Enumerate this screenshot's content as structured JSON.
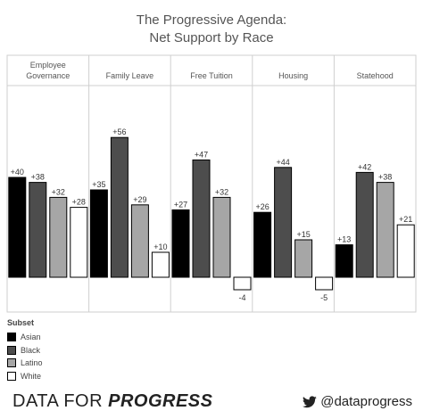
{
  "title_line1": "The Progressive Agenda:",
  "title_line2": "Net Support by Race",
  "legend": {
    "title": "Subset",
    "items": [
      {
        "label": "Asian",
        "color": "#000000"
      },
      {
        "label": "Black",
        "color": "#4d4d4d"
      },
      {
        "label": "Latino",
        "color": "#a6a6a6"
      },
      {
        "label": "White",
        "color": "#ffffff"
      }
    ]
  },
  "brand": {
    "prefix": "DATA FOR ",
    "emph": "PROGRESS"
  },
  "twitter": {
    "handle": "@dataprogress",
    "icon": "twitter-bird-icon"
  },
  "chart_data": {
    "type": "bar",
    "categories": [
      "Employee Governance",
      "Family Leave",
      "Free Tuition",
      "Housing",
      "Statehood"
    ],
    "category_labels": [
      [
        "Employee",
        "Governance"
      ],
      [
        "Family Leave"
      ],
      [
        "Free Tuition"
      ],
      [
        "Housing"
      ],
      [
        "Statehood"
      ]
    ],
    "series": [
      {
        "name": "Asian",
        "values": [
          40,
          35,
          27,
          26,
          13
        ]
      },
      {
        "name": "Black",
        "values": [
          38,
          56,
          47,
          44,
          42
        ]
      },
      {
        "name": "Latino",
        "values": [
          32,
          29,
          32,
          15,
          38
        ]
      },
      {
        "name": "White",
        "values": [
          28,
          10,
          -4,
          -5,
          21
        ]
      }
    ],
    "data_labels": [
      [
        "+40",
        "+38",
        "+32",
        "+28"
      ],
      [
        "+35",
        "+56",
        "+29",
        "+10"
      ],
      [
        "+27",
        "+47",
        "+32",
        "-4"
      ],
      [
        "+26",
        "+44",
        "+15",
        "-5"
      ],
      [
        "+13",
        "+42",
        "+38",
        "+21"
      ]
    ],
    "ylim": [
      -5,
      56
    ],
    "grid": false,
    "legend_position": "bottom-left"
  }
}
